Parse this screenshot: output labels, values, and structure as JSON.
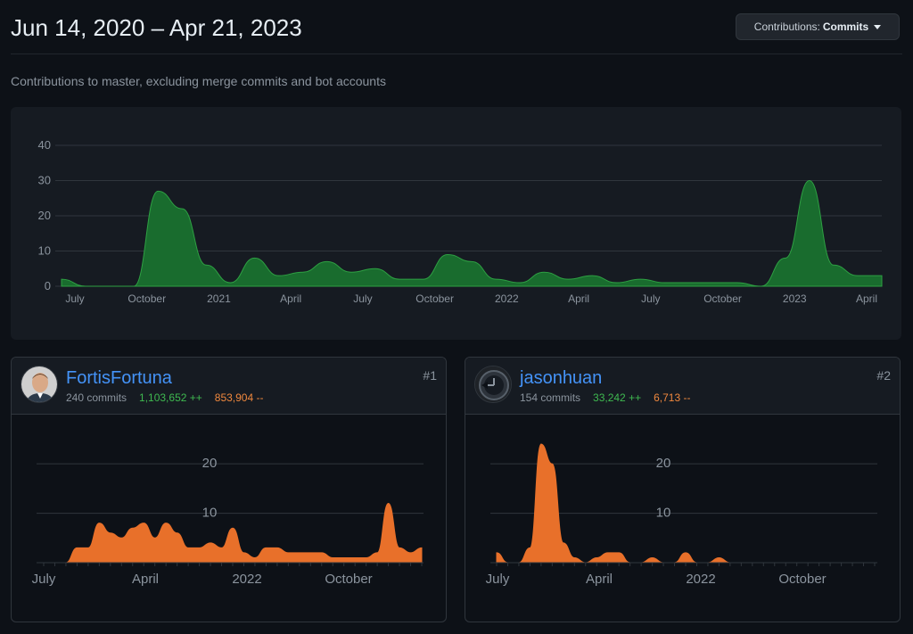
{
  "header": {
    "date_range": "Jun 14, 2020 – Apr 21, 2023",
    "dropdown_prefix": "Contributions:",
    "dropdown_value": "Commits"
  },
  "subtitle": "Contributions to master, excluding merge commits and bot accounts",
  "colors": {
    "main_fill": "#196c2e",
    "main_stroke": "#2ea043",
    "contributor_fill": "#e8702a",
    "grid": "#30363d",
    "tick_label": "#8b949e",
    "username": "#4493f8",
    "additions": "#3fb950",
    "deletions": "#f0883e"
  },
  "contributors": [
    {
      "rank": "#1",
      "username": "FortisFortuna",
      "commits": "240 commits",
      "additions": "1,103,652 ++",
      "deletions": "853,904 --",
      "avatar_icon": "user-photo-avatar"
    },
    {
      "rank": "#2",
      "username": "jasonhuan",
      "commits": "154 commits",
      "additions": "33,242 ++",
      "deletions": "6,713 --",
      "avatar_icon": "clock-avatar"
    }
  ],
  "chart_data": [
    {
      "type": "area",
      "title": "",
      "x_tick_labels": [
        "July",
        "October",
        "2021",
        "April",
        "July",
        "October",
        "2022",
        "April",
        "July",
        "October",
        "2023",
        "April"
      ],
      "y_ticks": [
        0,
        10,
        20,
        30,
        40
      ],
      "ylim": [
        0,
        40
      ],
      "grid": true,
      "x": [
        "2020-06",
        "2020-07",
        "2020-08",
        "2020-09",
        "2020-10",
        "2020-11",
        "2020-12",
        "2021-01",
        "2021-02",
        "2021-03",
        "2021-04",
        "2021-05",
        "2021-06",
        "2021-07",
        "2021-08",
        "2021-09",
        "2021-10",
        "2021-11",
        "2021-12",
        "2022-01",
        "2022-02",
        "2022-03",
        "2022-04",
        "2022-05",
        "2022-06",
        "2022-07",
        "2022-08",
        "2022-09",
        "2022-10",
        "2022-11",
        "2022-12",
        "2023-01",
        "2023-02",
        "2023-03",
        "2023-04"
      ],
      "series": [
        {
          "values": [
            2,
            0,
            0,
            0,
            27,
            22,
            6,
            1,
            8,
            3,
            4,
            7,
            4,
            5,
            2,
            2,
            9,
            7,
            2,
            1,
            4,
            2,
            3,
            1,
            2,
            1,
            1,
            1,
            1,
            0,
            8,
            30,
            6,
            3,
            3
          ]
        }
      ]
    },
    {
      "type": "area",
      "title": "",
      "x_tick_labels": [
        "July",
        "April",
        "2022",
        "October"
      ],
      "y_ticks": [
        10,
        20
      ],
      "ylim": [
        0,
        24
      ],
      "grid": true,
      "x": [
        "2020-06",
        "2020-07",
        "2020-08",
        "2020-09",
        "2020-10",
        "2020-11",
        "2020-12",
        "2021-01",
        "2021-02",
        "2021-03",
        "2021-04",
        "2021-05",
        "2021-06",
        "2021-07",
        "2021-08",
        "2021-09",
        "2021-10",
        "2021-11",
        "2021-12",
        "2022-01",
        "2022-02",
        "2022-03",
        "2022-04",
        "2022-05",
        "2022-06",
        "2022-07",
        "2022-08",
        "2022-09",
        "2022-10",
        "2022-11",
        "2022-12",
        "2023-01",
        "2023-02",
        "2023-03",
        "2023-04"
      ],
      "series": [
        {
          "values": [
            0,
            0,
            0,
            3,
            3,
            8,
            6,
            5,
            7,
            8,
            5,
            8,
            6,
            3,
            3,
            4,
            3,
            7,
            2,
            1,
            3,
            3,
            2,
            2,
            2,
            2,
            1,
            1,
            1,
            1,
            2,
            12,
            3,
            2,
            3
          ]
        }
      ]
    },
    {
      "type": "area",
      "title": "",
      "x_tick_labels": [
        "July",
        "April",
        "2022",
        "October"
      ],
      "y_ticks": [
        10,
        20
      ],
      "ylim": [
        0,
        24
      ],
      "grid": true,
      "x": [
        "2020-06",
        "2020-07",
        "2020-08",
        "2020-09",
        "2020-10",
        "2020-11",
        "2020-12",
        "2021-01",
        "2021-02",
        "2021-03",
        "2021-04",
        "2021-05",
        "2021-06",
        "2021-07",
        "2021-08",
        "2021-09",
        "2021-10",
        "2021-11",
        "2021-12",
        "2022-01",
        "2022-02",
        "2022-03",
        "2022-04",
        "2022-05",
        "2022-06",
        "2022-07",
        "2022-08",
        "2022-09",
        "2022-10",
        "2022-11",
        "2022-12",
        "2023-01",
        "2023-02",
        "2023-03",
        "2023-04"
      ],
      "series": [
        {
          "values": [
            2,
            0,
            0,
            3,
            24,
            20,
            4,
            1,
            0,
            1,
            2,
            2,
            0,
            0,
            1,
            0,
            0,
            2,
            0,
            0,
            1,
            0,
            0,
            0,
            0,
            0,
            0,
            0,
            0,
            0,
            0,
            0,
            0,
            0,
            0
          ]
        }
      ]
    }
  ]
}
